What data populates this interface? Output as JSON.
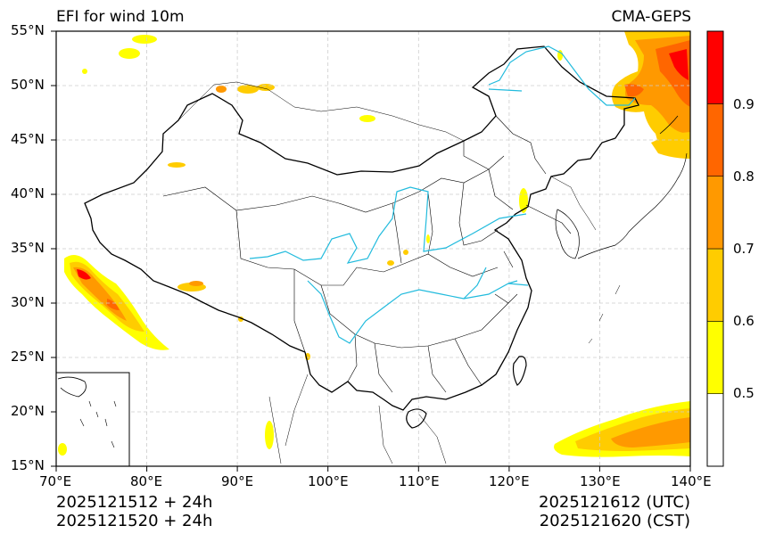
{
  "map": {
    "title": "EFI for wind 10m",
    "source": "CMA-GEPS",
    "lon_labels": [
      "70°E",
      "80°E",
      "90°E",
      "100°E",
      "110°E",
      "120°E",
      "130°E",
      "140°E"
    ],
    "lat_labels": [
      "55°N",
      "50°N",
      "45°N",
      "40°N",
      "35°N",
      "30°N",
      "25°N",
      "20°N",
      "15°N"
    ],
    "extent": {
      "lon": [
        70,
        140
      ],
      "lat": [
        15,
        55
      ]
    },
    "init_utc": "2025121512 + 24h",
    "init_cst": "2025121520 + 24h",
    "valid_utc": "2025121612 (UTC)",
    "valid_cst": "2025121620 (CST)"
  },
  "colorbar": {
    "levels": [
      0.4,
      0.5,
      0.6,
      0.7,
      0.8,
      0.9,
      1.0
    ],
    "colors": [
      "#ffffff",
      "#ffff00",
      "#ffcc00",
      "#ff9900",
      "#ff6600",
      "#ff0000"
    ],
    "tick_labels": [
      "0.5",
      "0.6",
      "0.7",
      "0.8",
      "0.9"
    ]
  },
  "colors": {
    "river": "#22bbdd",
    "boundary": "#000000",
    "grid": "#cccccc"
  }
}
